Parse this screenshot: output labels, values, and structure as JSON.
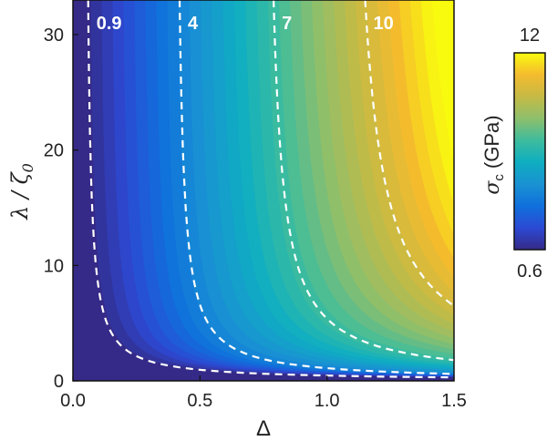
{
  "chart_data": {
    "type": "heatmap",
    "subtype": "filled-contour",
    "xlabel": "Δ",
    "ylabel": "λ / ζ",
    "ylabel_sub": "0",
    "xlim": [
      0.0,
      1.5
    ],
    "ylim": [
      0,
      33
    ],
    "xticks": [
      {
        "value": 0.0,
        "label": "0.0"
      },
      {
        "value": 0.5,
        "label": "0.5"
      },
      {
        "value": 1.0,
        "label": "1.0"
      },
      {
        "value": 1.5,
        "label": "1.5"
      }
    ],
    "yticks": [
      {
        "value": 0,
        "label": "0"
      },
      {
        "value": 10,
        "label": "10"
      },
      {
        "value": 20,
        "label": "20"
      },
      {
        "value": 30,
        "label": "30"
      }
    ],
    "colorbar": {
      "label": "σ",
      "label_sub": "c",
      "label_unit": "(GPa)",
      "min": 0.6,
      "max": 12,
      "min_label": "0.6",
      "max_label": "12",
      "colormap": "parula",
      "stops": [
        "#352a87",
        "#2c4ad4",
        "#0f70dc",
        "#1a92d2",
        "#0eaec1",
        "#3ebc9d",
        "#8ebf6c",
        "#c5ba45",
        "#f4bb2e",
        "#f9fb0e"
      ]
    },
    "contours": [
      {
        "value": 0.9,
        "label": "0.9",
        "x_at_top": 0.06,
        "y_at_right": 0.3
      },
      {
        "value": 4,
        "label": "4",
        "x_at_top": 0.42,
        "y_at_right": 0.6
      },
      {
        "value": 7,
        "label": "7",
        "x_at_top": 0.79,
        "y_at_right": 1.8
      },
      {
        "value": 10,
        "label": "10",
        "x_at_top": 1.15,
        "y_at_right": 6.5
      }
    ],
    "contour_style": "white dashed",
    "grid": false
  }
}
